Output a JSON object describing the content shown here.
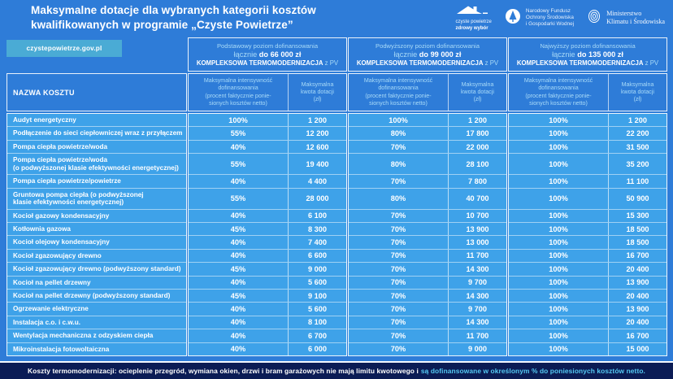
{
  "header": {
    "title": "Maksymalne dotacje dla wybranych kategorii kosztów\nkwalifikowanych w programie „Czyste Powietrze”",
    "logos": {
      "czyste_powietrze": {
        "line1": "czyste powietrze",
        "line2": "zdrowy wybór"
      },
      "nfosigw": "Narodowy Fundusz\nOchrony Środowiska\ni Gospodarki Wodnej",
      "ministerstwo": "Ministerstwo\nKlimatu i Środowiska"
    }
  },
  "site_badge": "czystepowietrze.gov.pl",
  "table": {
    "name_header": "NAZWA KOSZTU",
    "groups": [
      {
        "level": "Podstawowy poziom dofinansowania",
        "prefix": "łącznie",
        "amount": "do 66 000 zł",
        "program": "KOMPLEKSOWA TERMOMODERNIZACJA",
        "suffix": "z PV"
      },
      {
        "level": "Podwyższony poziom dofinansowania",
        "prefix": "łącznie",
        "amount": "do 99 000 zł",
        "program": "KOMPLEKSOWA TERMOMODERNIZACJA",
        "suffix": "z PV"
      },
      {
        "level": "Najwyższy poziom dofinansowania",
        "prefix": "łącznie",
        "amount": "do 135 000 zł",
        "program": "KOMPLEKSOWA TERMOMODERNIZACJA",
        "suffix": "z PV"
      }
    ],
    "sub_intensity": "Maksymalna intensywność\ndofinansowania\n(procent faktycznie ponie-\nsionych kosztów netto)",
    "sub_amount": "Maksymalna\nkwota dotacji\n(zł)",
    "rows": [
      {
        "name": "Audyt energetyczny",
        "two_line": false,
        "basic_pct": "100%",
        "basic_amt": "1 200",
        "elevated_pct": "100%",
        "elevated_amt": "1 200",
        "highest_pct": "100%",
        "highest_amt": "1 200"
      },
      {
        "name": "Podłączenie do sieci ciepłowniczej wraz z przyłączem",
        "two_line": false,
        "basic_pct": "55%",
        "basic_amt": "12 200",
        "elevated_pct": "80%",
        "elevated_amt": "17 800",
        "highest_pct": "100%",
        "highest_amt": "22 200"
      },
      {
        "name": "Pompa ciepła powietrze/woda",
        "two_line": false,
        "basic_pct": "40%",
        "basic_amt": "12 600",
        "elevated_pct": "70%",
        "elevated_amt": "22 000",
        "highest_pct": "100%",
        "highest_amt": "31 500"
      },
      {
        "name": "Pompa ciepła powietrze/woda\n(o podwyższonej klasie efektywności energetycznej)",
        "two_line": true,
        "basic_pct": "55%",
        "basic_amt": "19 400",
        "elevated_pct": "80%",
        "elevated_amt": "28 100",
        "highest_pct": "100%",
        "highest_amt": "35 200"
      },
      {
        "name": "Pompa ciepła powietrze/powietrze",
        "two_line": false,
        "basic_pct": "40%",
        "basic_amt": "4 400",
        "elevated_pct": "70%",
        "elevated_amt": "7 800",
        "highest_pct": "100%",
        "highest_amt": "11 100"
      },
      {
        "name": "Gruntowa pompa ciepła (o podwyższonej\nklasie efektywności energetycznej)",
        "two_line": true,
        "basic_pct": "55%",
        "basic_amt": "28 000",
        "elevated_pct": "80%",
        "elevated_amt": "40 700",
        "highest_pct": "100%",
        "highest_amt": "50 900"
      },
      {
        "name": "Kocioł gazowy kondensacyjny",
        "two_line": false,
        "basic_pct": "40%",
        "basic_amt": "6 100",
        "elevated_pct": "70%",
        "elevated_amt": "10 700",
        "highest_pct": "100%",
        "highest_amt": "15 300"
      },
      {
        "name": "Kotłownia gazowa",
        "two_line": false,
        "basic_pct": "45%",
        "basic_amt": "8 300",
        "elevated_pct": "70%",
        "elevated_amt": "13 900",
        "highest_pct": "100%",
        "highest_amt": "18 500"
      },
      {
        "name": "Kocioł olejowy kondensacyjny",
        "two_line": false,
        "basic_pct": "40%",
        "basic_amt": "7 400",
        "elevated_pct": "70%",
        "elevated_amt": "13 000",
        "highest_pct": "100%",
        "highest_amt": "18 500"
      },
      {
        "name": "Kocioł zgazowujący drewno",
        "two_line": false,
        "basic_pct": "40%",
        "basic_amt": "6 600",
        "elevated_pct": "70%",
        "elevated_amt": "11 700",
        "highest_pct": "100%",
        "highest_amt": "16 700"
      },
      {
        "name": "Kocioł zgazowujący drewno (podwyższony standard)",
        "two_line": false,
        "basic_pct": "45%",
        "basic_amt": "9 000",
        "elevated_pct": "70%",
        "elevated_amt": "14 300",
        "highest_pct": "100%",
        "highest_amt": "20 400"
      },
      {
        "name": "Kocioł na pellet drzewny",
        "two_line": false,
        "basic_pct": "40%",
        "basic_amt": "5 600",
        "elevated_pct": "70%",
        "elevated_amt": "9 700",
        "highest_pct": "100%",
        "highest_amt": "13 900"
      },
      {
        "name": "Kocioł na pellet drzewny (podwyższony standard)",
        "two_line": false,
        "basic_pct": "45%",
        "basic_amt": "9 100",
        "elevated_pct": "70%",
        "elevated_amt": "14 300",
        "highest_pct": "100%",
        "highest_amt": "20 400"
      },
      {
        "name": "Ogrzewanie elektryczne",
        "two_line": false,
        "basic_pct": "40%",
        "basic_amt": "5 600",
        "elevated_pct": "70%",
        "elevated_amt": "9 700",
        "highest_pct": "100%",
        "highest_amt": "13 900"
      },
      {
        "name": "Instalacja c.o. i c.w.u.",
        "two_line": false,
        "basic_pct": "40%",
        "basic_amt": "8 100",
        "elevated_pct": "70%",
        "elevated_amt": "14 300",
        "highest_pct": "100%",
        "highest_amt": "20 400"
      },
      {
        "name": "Wentylacja mechaniczna z odzyskiem ciepła",
        "two_line": false,
        "basic_pct": "40%",
        "basic_amt": "6 700",
        "elevated_pct": "70%",
        "elevated_amt": "11 700",
        "highest_pct": "100%",
        "highest_amt": "16 700"
      },
      {
        "name": "Mikroinstalacja fotowoltaiczna",
        "two_line": false,
        "basic_pct": "40%",
        "basic_amt": "6 000",
        "elevated_pct": "70%",
        "elevated_amt": "9 000",
        "highest_pct": "100%",
        "highest_amt": "15 000"
      }
    ]
  },
  "footer": {
    "text_white": "Koszty termomodernizacji: ocieplenie przegród, wymiana okien, drzwi i bram garażowych nie mają limitu kwotowego i",
    "text_cyan": "są dofinansowane w określonym % do poniesionych kosztów netto."
  },
  "colors": {
    "background_blue": "#2e7cd8",
    "cell_cyan": "#3ea2e9",
    "badge_blue": "#4aabd5",
    "footer_navy": "#0b1c55",
    "light_text": "#a9dbf8",
    "footer_cyan": "#55c9f3"
  }
}
